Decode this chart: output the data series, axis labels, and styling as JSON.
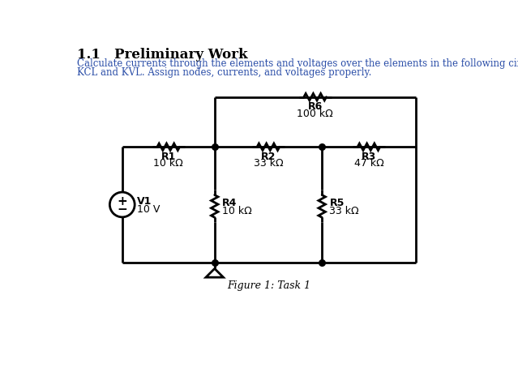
{
  "title": "1.1   Preliminary Work",
  "description_line1": "Calculate currents through the elements and voltages over the elements in the following circuit using",
  "description_line2": "KCL and KVL. Assign nodes, currents, and voltages properly.",
  "figure_caption": "Figure 1: Task 1",
  "components": {
    "R1": {
      "label": "R1",
      "value": "10 kΩ"
    },
    "R2": {
      "label": "R2",
      "value": "33 kΩ"
    },
    "R3": {
      "label": "R3",
      "value": "47 kΩ"
    },
    "R4": {
      "label": "R4",
      "value": "10 kΩ"
    },
    "R5": {
      "label": "R5",
      "value": "33 kΩ"
    },
    "R6": {
      "label": "R6",
      "value": "100 kΩ"
    },
    "V1": {
      "label": "V1",
      "value": "10 V"
    }
  },
  "bg_color": "#ffffff",
  "line_color": "#000000",
  "text_color": "#000000",
  "title_color": "#000000",
  "desc_color": "#2b4ea8",
  "lw": 2.0
}
